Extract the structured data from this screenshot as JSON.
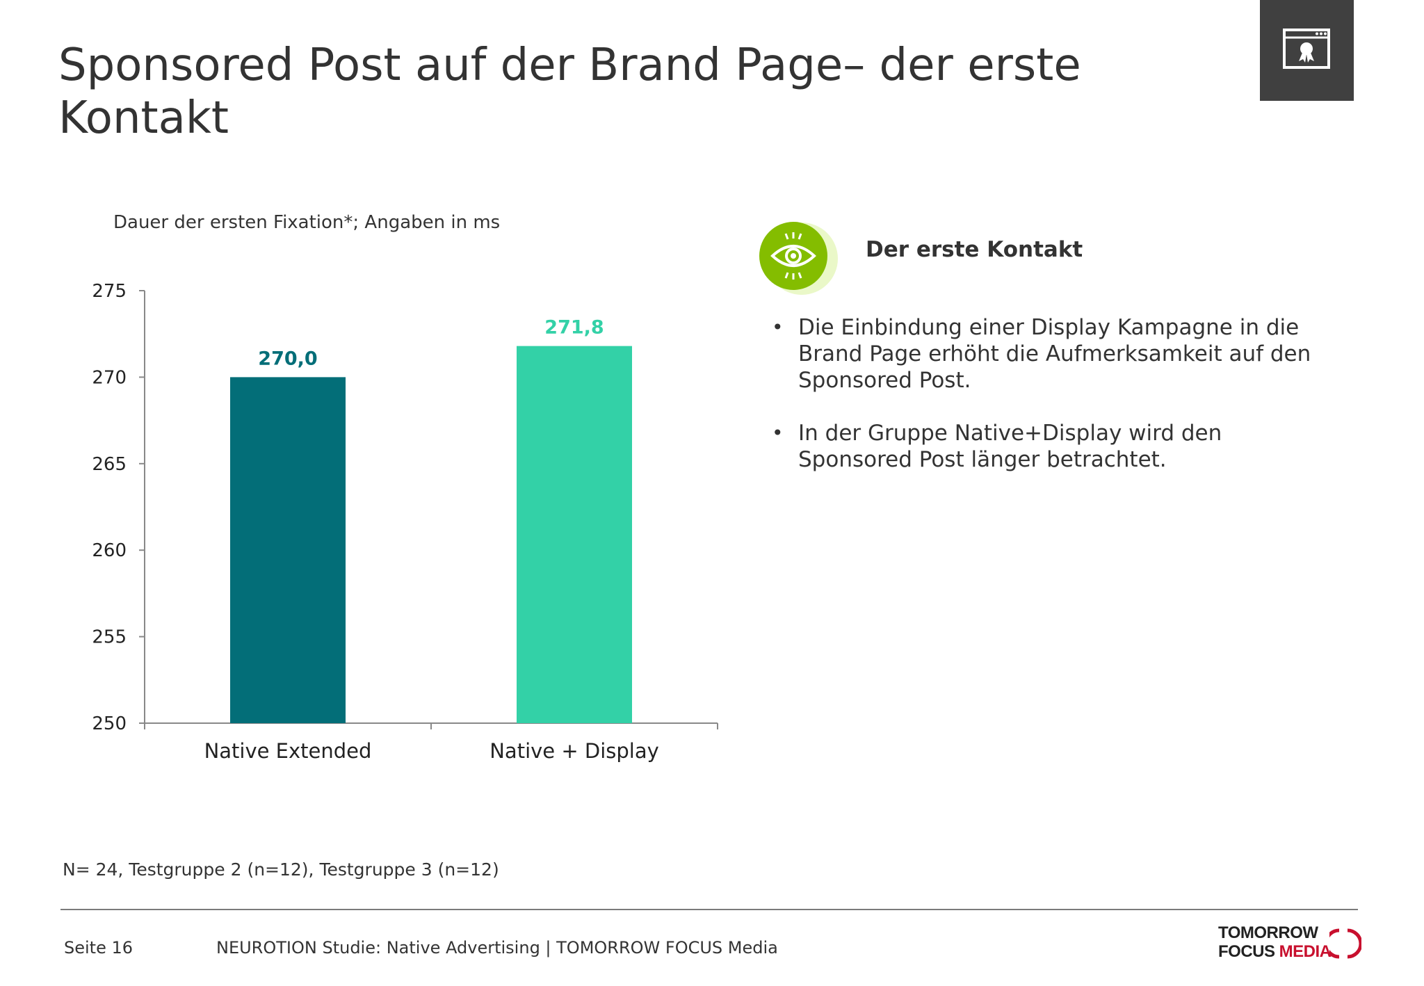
{
  "slide": {
    "title": "Sponsored Post auf der Brand Page– der erste Kontakt",
    "chart_subtitle": "Dauer der ersten Fixation*; Angaben in ms",
    "footnote": "N= 24, Testgruppe 2 (n=12), Testgruppe 3 (n=12)",
    "page_number": "Seite 16",
    "footer_text": "NEUROTION Studie: Native Advertising | TOMORROW FOCUS Media",
    "corner_icon": "browser-award-icon",
    "accent_dark": "#404040"
  },
  "panel": {
    "icon": "eye-icon",
    "icon_color": "#84bd00",
    "heading": "Der erste Kontakt",
    "bullets": [
      "Die Einbindung einer Display Kampagne in die Brand Page erhöht die Aufmerksamkeit auf den Sponsored Post.",
      "In der Gruppe Native+Display wird den Sponsored Post länger betrachtet."
    ]
  },
  "logo": {
    "line1": "TOMORROW",
    "line2_a": "FOCUS",
    "line2_b": "MEDIA",
    "red": "#c8102e"
  },
  "chart_data": {
    "type": "bar",
    "categories": [
      "Native Extended",
      "Native + Display"
    ],
    "values": [
      270.0,
      271.8
    ],
    "value_labels": [
      "270,0",
      "271,8"
    ],
    "colors": [
      "#036e78",
      "#33d1a7"
    ],
    "ylim": [
      250,
      275
    ],
    "yticks": [
      250,
      255,
      260,
      265,
      270,
      275
    ],
    "title": "",
    "xlabel": "",
    "ylabel": "",
    "grid": false,
    "legend": "none"
  }
}
